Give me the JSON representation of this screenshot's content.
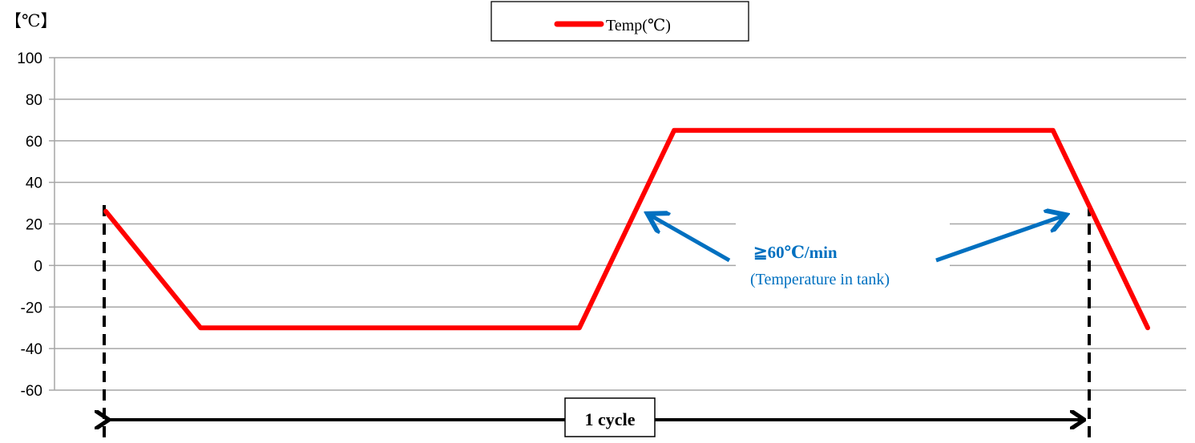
{
  "chart_data": {
    "type": "line",
    "unit_label": "【℃】",
    "legend": [
      "Temp(℃)"
    ],
    "legend_position": "top-center",
    "grid": true,
    "ylim": [
      -60,
      100
    ],
    "yticks": [
      "100",
      "80",
      "60",
      "40",
      "20",
      "0",
      "-20",
      "-40",
      "-60"
    ],
    "series": [
      {
        "name": "Temp(℃)",
        "color": "#ff0000",
        "points": [
          {
            "x": 0,
            "y": 26
          },
          {
            "x": 1,
            "y": -30
          },
          {
            "x": 5,
            "y": -30
          },
          {
            "x": 6,
            "y": 65
          },
          {
            "x": 10,
            "y": 65
          },
          {
            "x": 11,
            "y": -30
          }
        ]
      }
    ],
    "annotations": {
      "rate_label": "≧60℃/min",
      "rate_sublabel": "(Temperature in tank)",
      "rate_color": "#0070c0",
      "cycle_label": "1 cycle"
    }
  }
}
